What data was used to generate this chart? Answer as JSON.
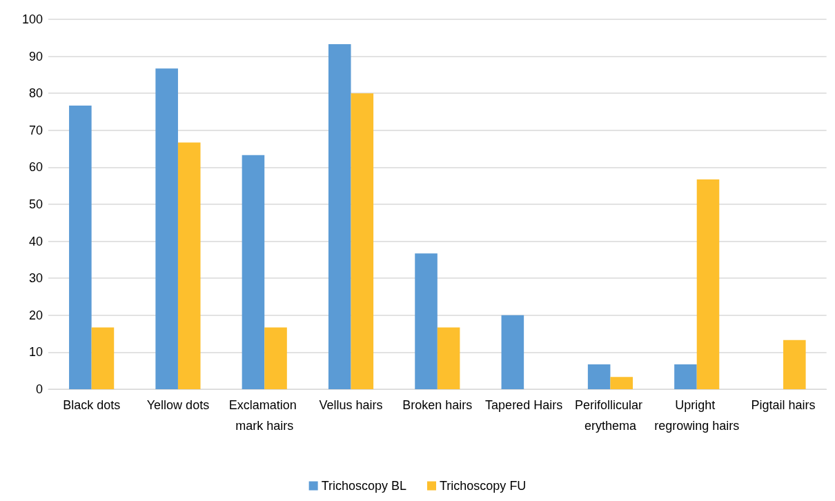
{
  "chart_data": {
    "type": "bar",
    "categories": [
      "Black dots",
      "Yellow dots",
      "Exclamation mark hairs",
      "Vellus hairs",
      "Broken hairs",
      "Tapered Hairs",
      "Perifollicular erythema",
      "Upright regrowing hairs",
      "Pigtail hairs"
    ],
    "series": [
      {
        "name": "Trichoscopy BL",
        "color": "#5b9bd5",
        "values": [
          76.7,
          86.7,
          63.3,
          93.3,
          36.7,
          20,
          6.7,
          6.7,
          0
        ]
      },
      {
        "name": "Trichoscopy FU",
        "color": "#fdbf2d",
        "values": [
          16.7,
          66.7,
          16.7,
          80,
          16.7,
          0,
          3.3,
          56.7,
          13.3
        ]
      }
    ],
    "ylim": [
      0,
      100
    ],
    "yticks": [
      0,
      10,
      20,
      30,
      40,
      50,
      60,
      70,
      80,
      90,
      100
    ],
    "grid": "y",
    "legend": "bottom"
  }
}
